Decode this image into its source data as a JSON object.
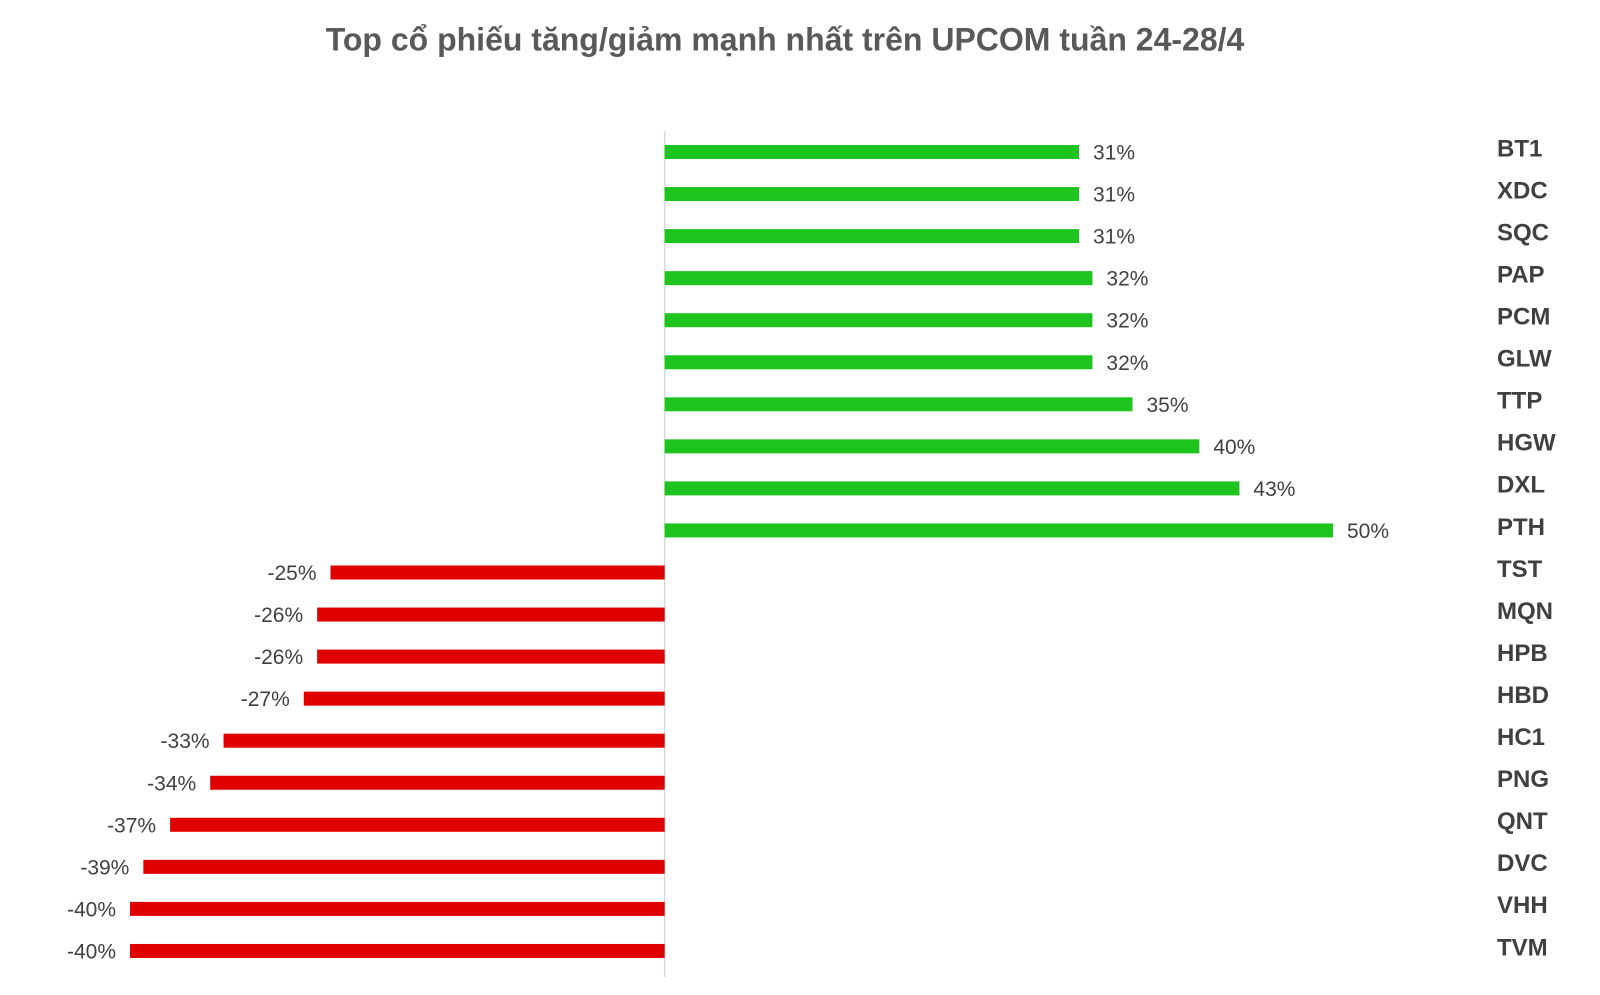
{
  "chart_data": {
    "type": "bar",
    "orientation": "horizontal",
    "title": "Top cổ phiếu tăng/giảm mạnh nhất trên UPCOM tuần 24-28/4",
    "categories": [
      "BT1",
      "XDC",
      "SQC",
      "PAP",
      "PCM",
      "GLW",
      "TTP",
      "HGW",
      "DXL",
      "PTH",
      "TST",
      "MQN",
      "HPB",
      "HBD",
      "HC1",
      "PNG",
      "QNT",
      "DVC",
      "VHH",
      "TVM"
    ],
    "values": [
      31,
      31,
      31,
      32,
      32,
      32,
      35,
      40,
      43,
      50,
      -25,
      -26,
      -26,
      -27,
      -33,
      -34,
      -37,
      -39,
      -40,
      -40
    ],
    "value_labels": [
      "31%",
      "31%",
      "31%",
      "32%",
      "32%",
      "32%",
      "35%",
      "40%",
      "43%",
      "50%",
      "-25%",
      "-26%",
      "-26%",
      "-27%",
      "-33%",
      "-34%",
      "-37%",
      "-39%",
      "-40%",
      "-40%"
    ],
    "positive_color": "#1ec41e",
    "negative_color": "#e00000",
    "xlim": [
      -40,
      50
    ]
  }
}
